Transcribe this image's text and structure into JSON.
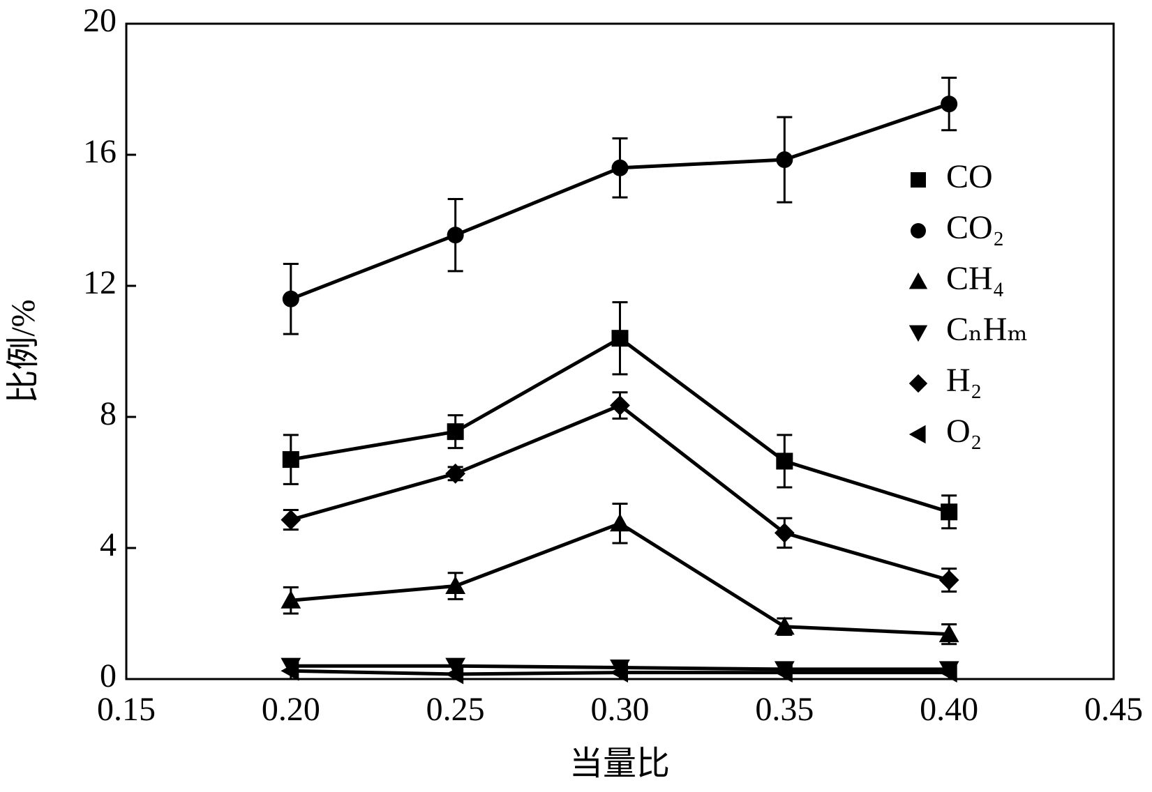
{
  "chart_data": {
    "type": "line",
    "x": [
      0.2,
      0.25,
      0.3,
      0.35,
      0.4
    ],
    "xlabel": "当量比",
    "ylabel": "比例/%",
    "xlim": [
      0.15,
      0.45
    ],
    "xticks": [
      0.15,
      {
        "value": 0.2,
        "label": "0.20"
      },
      0.25,
      {
        "value": 0.3,
        "label": "0.30"
      },
      0.35,
      {
        "value": 0.4,
        "label": "0.40"
      },
      0.45
    ],
    "ylim": [
      0,
      20
    ],
    "yticks": [
      0,
      4,
      8,
      12,
      16,
      20
    ],
    "legend": "upper right",
    "series": [
      {
        "name": "CO",
        "color": "#000000",
        "marker": "square",
        "values": [
          6.7,
          7.55,
          10.4,
          6.65,
          5.1
        ],
        "errors": [
          0.75,
          0.5,
          1.1,
          0.8,
          0.5
        ]
      },
      {
        "name": "CO₂",
        "color": "#000000",
        "marker": "circle",
        "values": [
          11.6,
          13.55,
          15.6,
          15.85,
          17.55
        ],
        "errors": [
          1.07,
          1.1,
          0.9,
          1.3,
          0.8
        ]
      },
      {
        "name": "CH₄",
        "color": "#000000",
        "marker": "triangle-up",
        "values": [
          2.4,
          2.84,
          4.75,
          1.6,
          1.37
        ],
        "errors": [
          0.4,
          0.4,
          0.6,
          0.25,
          0.3
        ]
      },
      {
        "name": "CₙHₘ",
        "color": "#000000",
        "marker": "triangle-down",
        "values": [
          0.4,
          0.4,
          0.35,
          0.3,
          0.3
        ]
      },
      {
        "name": "H₂",
        "color": "#000000",
        "marker": "diamond",
        "values": [
          4.86,
          6.27,
          8.35,
          4.46,
          3.02
        ],
        "errors": [
          0.3,
          0.2,
          0.4,
          0.45,
          0.35
        ]
      },
      {
        "name": "O₂",
        "color": "#000000",
        "marker": "triangle-left",
        "values": [
          0.25,
          0.15,
          0.2,
          0.2,
          0.2
        ]
      }
    ]
  }
}
